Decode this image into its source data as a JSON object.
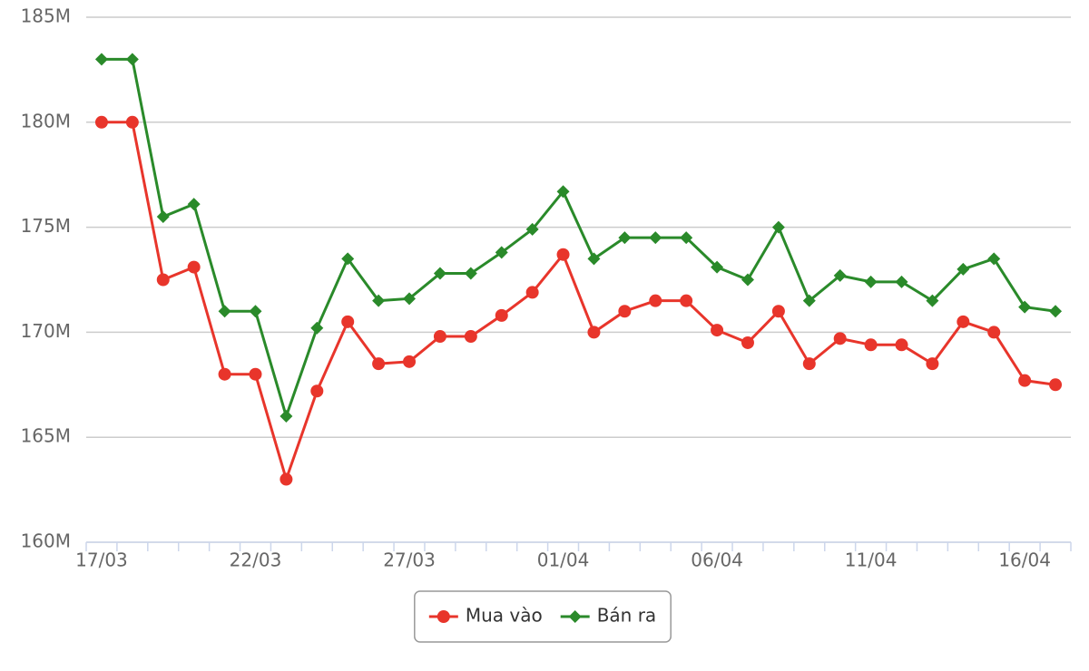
{
  "chart_data": {
    "type": "line",
    "categories": [
      "17/03",
      null,
      null,
      null,
      null,
      "22/03",
      null,
      null,
      null,
      null,
      "27/03",
      null,
      null,
      null,
      null,
      "01/04",
      null,
      null,
      null,
      null,
      "06/04",
      null,
      null,
      null,
      null,
      "11/04",
      null,
      null,
      null,
      null,
      "16/04",
      null
    ],
    "series": [
      {
        "name": "Mua vào",
        "color": "#e8352b",
        "marker": "circle",
        "values": [
          180000000,
          180000000,
          172500000,
          173100000,
          168000000,
          168000000,
          163000000,
          167200000,
          170500000,
          168500000,
          168600000,
          169800000,
          169800000,
          170800000,
          171900000,
          173700000,
          170000000,
          171000000,
          171500000,
          171500000,
          170100000,
          169500000,
          171000000,
          168500000,
          169700000,
          169400000,
          169400000,
          168500000,
          170500000,
          170000000,
          167700000,
          167500000
        ]
      },
      {
        "name": "Bán ra",
        "color": "#2a8a2a",
        "marker": "diamond",
        "values": [
          183000000,
          183000000,
          175500000,
          176100000,
          171000000,
          171000000,
          166000000,
          170200000,
          173500000,
          171500000,
          171600000,
          172800000,
          172800000,
          173800000,
          174900000,
          176700000,
          173500000,
          174500000,
          174500000,
          174500000,
          173100000,
          172500000,
          175000000,
          171500000,
          172700000,
          172400000,
          172400000,
          171500000,
          173000000,
          173500000,
          171200000,
          171000000
        ]
      }
    ],
    "ylim": [
      160000000,
      185000000
    ],
    "yticks": [
      {
        "value": 160000000,
        "label": "160M"
      },
      {
        "value": 165000000,
        "label": "165M"
      },
      {
        "value": 170000000,
        "label": "170M"
      },
      {
        "value": 175000000,
        "label": "175M"
      },
      {
        "value": 180000000,
        "label": "180M"
      },
      {
        "value": 185000000,
        "label": "185M"
      }
    ],
    "grid": true,
    "legend": "bottom"
  }
}
